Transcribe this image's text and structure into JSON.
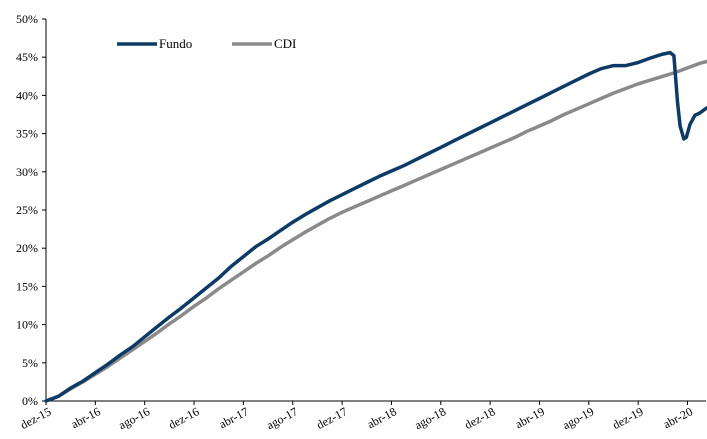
{
  "chart_data": {
    "type": "line",
    "title": "",
    "xlabel": "",
    "ylabel": "",
    "grid": false,
    "legend_position": "top-left",
    "ylim": [
      0,
      50
    ],
    "y_ticks": [
      "0%",
      "5%",
      "10%",
      "15%",
      "20%",
      "25%",
      "30%",
      "35%",
      "40%",
      "45%",
      "50%"
    ],
    "x_ticks": [
      "dez-15",
      "abr-16",
      "ago-16",
      "dez-16",
      "abr-17",
      "ago-17",
      "dez-17",
      "abr-18",
      "ago-18",
      "dez-18",
      "abr-19",
      "ago-19",
      "dez-19",
      "abr-20"
    ],
    "xlim": [
      0,
      53.5
    ],
    "series": [
      {
        "name": "Fundo",
        "color": "#0d3b66",
        "points": [
          [
            0,
            0
          ],
          [
            1,
            0.6
          ],
          [
            2,
            1.7
          ],
          [
            3,
            2.6
          ],
          [
            4,
            3.7
          ],
          [
            5,
            4.8
          ],
          [
            6,
            6.0
          ],
          [
            7,
            7.1
          ],
          [
            8,
            8.4
          ],
          [
            9,
            9.7
          ],
          [
            10,
            11.0
          ],
          [
            11,
            12.2
          ],
          [
            12,
            13.5
          ],
          [
            13,
            14.8
          ],
          [
            14,
            16.1
          ],
          [
            15,
            17.6
          ],
          [
            16,
            18.9
          ],
          [
            17,
            20.2
          ],
          [
            18,
            21.2
          ],
          [
            19,
            22.3
          ],
          [
            20,
            23.4
          ],
          [
            21,
            24.4
          ],
          [
            22,
            25.3
          ],
          [
            23,
            26.2
          ],
          [
            24,
            27.0
          ],
          [
            25,
            27.8
          ],
          [
            26,
            28.6
          ],
          [
            27,
            29.4
          ],
          [
            28,
            30.1
          ],
          [
            29,
            30.8
          ],
          [
            30,
            31.6
          ],
          [
            31,
            32.4
          ],
          [
            32,
            33.2
          ],
          [
            33,
            34.0
          ],
          [
            34,
            34.8
          ],
          [
            35,
            35.6
          ],
          [
            36,
            36.4
          ],
          [
            37,
            37.2
          ],
          [
            38,
            38.0
          ],
          [
            39,
            38.8
          ],
          [
            40,
            39.6
          ],
          [
            41,
            40.4
          ],
          [
            42,
            41.2
          ],
          [
            43,
            42.0
          ],
          [
            44,
            42.8
          ],
          [
            45,
            43.5
          ],
          [
            46,
            43.9
          ],
          [
            47,
            43.9
          ],
          [
            48,
            44.3
          ],
          [
            49,
            44.9
          ],
          [
            50,
            45.4
          ],
          [
            50.6,
            45.6
          ],
          [
            50.9,
            45.2
          ],
          [
            51.2,
            39.0
          ],
          [
            51.4,
            36.0
          ],
          [
            51.7,
            34.3
          ],
          [
            51.9,
            34.5
          ],
          [
            52.2,
            36.2
          ],
          [
            52.6,
            37.4
          ],
          [
            53.0,
            37.7
          ],
          [
            53.5,
            38.3
          ],
          [
            54.2,
            38.8
          ]
        ]
      },
      {
        "name": "CDI",
        "color": "#8a8a8a",
        "points": [
          [
            0,
            0
          ],
          [
            1,
            0.6
          ],
          [
            2,
            1.6
          ],
          [
            3,
            2.5
          ],
          [
            4,
            3.5
          ],
          [
            5,
            4.5
          ],
          [
            6,
            5.6
          ],
          [
            7,
            6.7
          ],
          [
            8,
            7.8
          ],
          [
            9,
            8.9
          ],
          [
            10,
            10.1
          ],
          [
            11,
            11.2
          ],
          [
            12,
            12.4
          ],
          [
            13,
            13.5
          ],
          [
            14,
            14.7
          ],
          [
            15,
            15.8
          ],
          [
            16,
            16.9
          ],
          [
            17,
            18.0
          ],
          [
            18,
            19.0
          ],
          [
            19,
            20.1
          ],
          [
            20,
            21.1
          ],
          [
            21,
            22.1
          ],
          [
            22,
            23.0
          ],
          [
            23,
            23.9
          ],
          [
            24,
            24.7
          ],
          [
            25,
            25.4
          ],
          [
            26,
            26.1
          ],
          [
            27,
            26.8
          ],
          [
            28,
            27.5
          ],
          [
            29,
            28.2
          ],
          [
            30,
            28.9
          ],
          [
            31,
            29.6
          ],
          [
            32,
            30.3
          ],
          [
            33,
            31.0
          ],
          [
            34,
            31.7
          ],
          [
            35,
            32.4
          ],
          [
            36,
            33.1
          ],
          [
            37,
            33.8
          ],
          [
            38,
            34.5
          ],
          [
            39,
            35.3
          ],
          [
            40,
            36.0
          ],
          [
            41,
            36.7
          ],
          [
            42,
            37.5
          ],
          [
            43,
            38.2
          ],
          [
            44,
            38.9
          ],
          [
            45,
            39.6
          ],
          [
            46,
            40.3
          ],
          [
            47,
            40.9
          ],
          [
            48,
            41.5
          ],
          [
            49,
            42.0
          ],
          [
            50,
            42.5
          ],
          [
            51,
            43.0
          ],
          [
            52,
            43.6
          ],
          [
            53,
            44.2
          ],
          [
            54.2,
            44.7
          ]
        ]
      }
    ]
  }
}
